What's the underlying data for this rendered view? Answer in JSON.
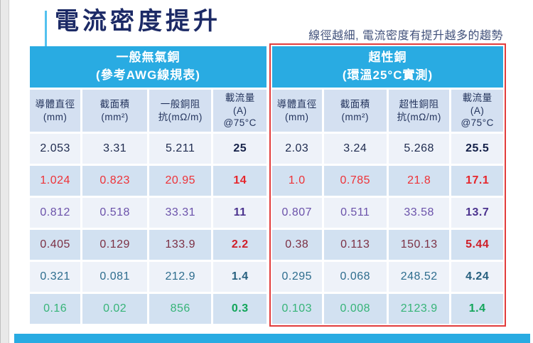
{
  "title": "電流密度提升",
  "subtitle": "線徑越細, 電流密度有提升越多的趨勢",
  "colors": {
    "accent_cyan": "#29abe2",
    "accent_bar": "#53c1ef",
    "title_navy": "#1c2a66",
    "subtitle_slate": "#40507a",
    "red_outline": "#e13c3c",
    "column_header_bg": "#d4e0f1",
    "row_bg_light": "#eef2f9",
    "row_bg_dark": "#d2e1f1"
  },
  "row_colors": {
    "navy": {
      "text": "#202c50",
      "strong": "#16224a"
    },
    "red": {
      "text": "#ee3237",
      "strong": "#e6262c"
    },
    "purple": {
      "text": "#6b52aa",
      "strong": "#4b338e"
    },
    "maroon": {
      "text": "#7c3044",
      "strong": "#cf1e28"
    },
    "teal": {
      "text": "#2e6d8e",
      "strong": "#27607f"
    },
    "green": {
      "text": "#36b478",
      "strong": "#12a55a"
    }
  },
  "tables": [
    {
      "name": "general-oxygen-free-copper",
      "header": [
        "一般無氣銅",
        "(參考AWG線規表)"
      ],
      "columns": [
        [
          "導體直徑",
          "(mm)"
        ],
        [
          "截面積",
          "(mm²)"
        ],
        [
          "一般銅阻",
          "抗(mΩ/m)"
        ],
        [
          "載流量",
          "(A)",
          "@75°C"
        ]
      ],
      "rows": [
        {
          "values": [
            "2.053",
            "3.31",
            "5.211",
            "25"
          ],
          "color": "navy"
        },
        {
          "values": [
            "1.024",
            "0.823",
            "20.95",
            "14"
          ],
          "color": "red"
        },
        {
          "values": [
            "0.812",
            "0.518",
            "33.31",
            "11"
          ],
          "color": "purple"
        },
        {
          "values": [
            "0.405",
            "0.129",
            "133.9",
            "2.2"
          ],
          "color": "maroon"
        },
        {
          "values": [
            "0.321",
            "0.081",
            "212.9",
            "1.4"
          ],
          "color": "teal"
        },
        {
          "values": [
            "0.16",
            "0.02",
            "856",
            "0.3"
          ],
          "color": "green"
        }
      ]
    },
    {
      "name": "super-copper",
      "header": [
        "超性銅",
        "(環溫25°C實測)"
      ],
      "columns": [
        [
          "導體直徑",
          "(mm)"
        ],
        [
          "截面積",
          "(mm²)"
        ],
        [
          "超性銅阻",
          "抗(mΩ/m)"
        ],
        [
          "載流量",
          "(A)",
          "@75°C"
        ]
      ],
      "rows": [
        {
          "values": [
            "2.03",
            "3.24",
            "5.268",
            "25.5"
          ],
          "color": "navy"
        },
        {
          "values": [
            "1.0",
            "0.785",
            "21.8",
            "17.1"
          ],
          "color": "red"
        },
        {
          "values": [
            "0.807",
            "0.511",
            "33.58",
            "13.7"
          ],
          "color": "purple"
        },
        {
          "values": [
            "0.38",
            "0.113",
            "150.13",
            "5.44"
          ],
          "color": "maroon"
        },
        {
          "values": [
            "0.295",
            "0.068",
            "248.52",
            "4.24"
          ],
          "color": "teal"
        },
        {
          "values": [
            "0.103",
            "0.008",
            "2123.9",
            "1.4"
          ],
          "color": "green"
        }
      ]
    }
  ]
}
